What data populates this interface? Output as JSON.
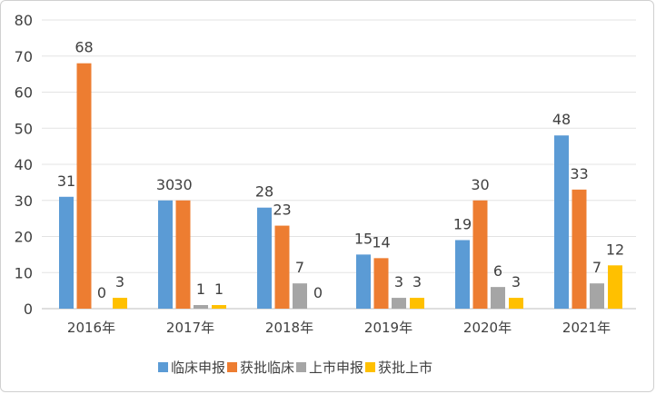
{
  "chart_data": {
    "type": "bar",
    "title": "",
    "xlabel": "",
    "ylabel": "",
    "ylim": [
      0,
      80
    ],
    "yticks": [
      0,
      10,
      20,
      30,
      40,
      50,
      60,
      70,
      80
    ],
    "grid": true,
    "legend_position": "bottom",
    "categories": [
      "2016年",
      "2017年",
      "2018年",
      "2019年",
      "2020年",
      "2021年"
    ],
    "series": [
      {
        "name": "临床申报",
        "color": "#5B9BD5",
        "values": [
          31,
          30,
          28,
          15,
          19,
          48
        ]
      },
      {
        "name": "获批临床",
        "color": "#ED7D31",
        "values": [
          68,
          30,
          23,
          14,
          30,
          33
        ]
      },
      {
        "name": "上市申报",
        "color": "#A5A5A5",
        "values": [
          0,
          1,
          7,
          3,
          6,
          7
        ]
      },
      {
        "name": "获批上市",
        "color": "#FFC000",
        "values": [
          3,
          1,
          0,
          3,
          3,
          12
        ]
      }
    ]
  }
}
